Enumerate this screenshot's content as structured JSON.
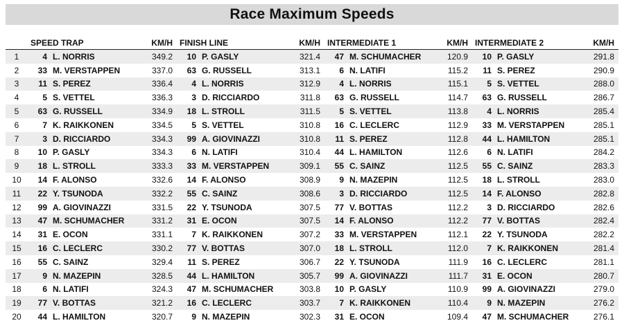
{
  "title": "Race Maximum Speeds",
  "ranks": [
    "1",
    "2",
    "3",
    "4",
    "5",
    "6",
    "7",
    "8",
    "9",
    "10",
    "11",
    "12",
    "13",
    "14",
    "15",
    "16",
    "17",
    "18",
    "19",
    "20"
  ],
  "sections": [
    {
      "id": "speed-trap",
      "label": "SPEED TRAP",
      "unit": "KM/H",
      "rows": [
        {
          "num": "4",
          "name": "L. NORRIS",
          "kmh": "349.2"
        },
        {
          "num": "33",
          "name": "M. VERSTAPPEN",
          "kmh": "337.0"
        },
        {
          "num": "11",
          "name": "S. PEREZ",
          "kmh": "336.4"
        },
        {
          "num": "5",
          "name": "S. VETTEL",
          "kmh": "336.3"
        },
        {
          "num": "63",
          "name": "G. RUSSELL",
          "kmh": "334.9"
        },
        {
          "num": "7",
          "name": "K. RAIKKONEN",
          "kmh": "334.5"
        },
        {
          "num": "3",
          "name": "D. RICCIARDO",
          "kmh": "334.3"
        },
        {
          "num": "10",
          "name": "P. GASLY",
          "kmh": "334.3"
        },
        {
          "num": "18",
          "name": "L. STROLL",
          "kmh": "333.3"
        },
        {
          "num": "14",
          "name": "F. ALONSO",
          "kmh": "332.6"
        },
        {
          "num": "22",
          "name": "Y. TSUNODA",
          "kmh": "332.2"
        },
        {
          "num": "99",
          "name": "A. GIOVINAZZI",
          "kmh": "331.5"
        },
        {
          "num": "47",
          "name": "M. SCHUMACHER",
          "kmh": "331.2"
        },
        {
          "num": "31",
          "name": "E. OCON",
          "kmh": "331.1"
        },
        {
          "num": "16",
          "name": "C. LECLERC",
          "kmh": "330.2"
        },
        {
          "num": "55",
          "name": "C. SAINZ",
          "kmh": "329.4"
        },
        {
          "num": "9",
          "name": "N. MAZEPIN",
          "kmh": "328.5"
        },
        {
          "num": "6",
          "name": "N. LATIFI",
          "kmh": "324.3"
        },
        {
          "num": "77",
          "name": "V. BOTTAS",
          "kmh": "321.2"
        },
        {
          "num": "44",
          "name": "L. HAMILTON",
          "kmh": "320.7"
        }
      ]
    },
    {
      "id": "finish-line",
      "label": "FINISH LINE",
      "unit": "KM/H",
      "rows": [
        {
          "num": "10",
          "name": "P. GASLY",
          "kmh": "321.4"
        },
        {
          "num": "63",
          "name": "G. RUSSELL",
          "kmh": "313.1"
        },
        {
          "num": "4",
          "name": "L. NORRIS",
          "kmh": "312.9"
        },
        {
          "num": "3",
          "name": "D. RICCIARDO",
          "kmh": "311.8"
        },
        {
          "num": "18",
          "name": "L. STROLL",
          "kmh": "311.5"
        },
        {
          "num": "5",
          "name": "S. VETTEL",
          "kmh": "310.8"
        },
        {
          "num": "99",
          "name": "A. GIOVINAZZI",
          "kmh": "310.8"
        },
        {
          "num": "6",
          "name": "N. LATIFI",
          "kmh": "310.4"
        },
        {
          "num": "33",
          "name": "M. VERSTAPPEN",
          "kmh": "309.1"
        },
        {
          "num": "14",
          "name": "F. ALONSO",
          "kmh": "308.9"
        },
        {
          "num": "55",
          "name": "C. SAINZ",
          "kmh": "308.6"
        },
        {
          "num": "22",
          "name": "Y. TSUNODA",
          "kmh": "307.5"
        },
        {
          "num": "31",
          "name": "E. OCON",
          "kmh": "307.5"
        },
        {
          "num": "7",
          "name": "K. RAIKKONEN",
          "kmh": "307.2"
        },
        {
          "num": "77",
          "name": "V. BOTTAS",
          "kmh": "307.0"
        },
        {
          "num": "11",
          "name": "S. PEREZ",
          "kmh": "306.7"
        },
        {
          "num": "44",
          "name": "L. HAMILTON",
          "kmh": "305.7"
        },
        {
          "num": "47",
          "name": "M. SCHUMACHER",
          "kmh": "303.8"
        },
        {
          "num": "16",
          "name": "C. LECLERC",
          "kmh": "303.7"
        },
        {
          "num": "9",
          "name": "N. MAZEPIN",
          "kmh": "302.3"
        }
      ]
    },
    {
      "id": "intermediate-1",
      "label": "INTERMEDIATE 1",
      "unit": "KM/H",
      "rows": [
        {
          "num": "47",
          "name": "M. SCHUMACHER",
          "kmh": "120.9"
        },
        {
          "num": "6",
          "name": "N. LATIFI",
          "kmh": "115.2"
        },
        {
          "num": "4",
          "name": "L. NORRIS",
          "kmh": "115.1"
        },
        {
          "num": "63",
          "name": "G. RUSSELL",
          "kmh": "114.7"
        },
        {
          "num": "5",
          "name": "S. VETTEL",
          "kmh": "113.8"
        },
        {
          "num": "16",
          "name": "C. LECLERC",
          "kmh": "112.9"
        },
        {
          "num": "11",
          "name": "S. PEREZ",
          "kmh": "112.8"
        },
        {
          "num": "44",
          "name": "L. HAMILTON",
          "kmh": "112.6"
        },
        {
          "num": "55",
          "name": "C. SAINZ",
          "kmh": "112.5"
        },
        {
          "num": "9",
          "name": "N. MAZEPIN",
          "kmh": "112.5"
        },
        {
          "num": "3",
          "name": "D. RICCIARDO",
          "kmh": "112.5"
        },
        {
          "num": "77",
          "name": "V. BOTTAS",
          "kmh": "112.2"
        },
        {
          "num": "14",
          "name": "F. ALONSO",
          "kmh": "112.2"
        },
        {
          "num": "33",
          "name": "M. VERSTAPPEN",
          "kmh": "112.1"
        },
        {
          "num": "18",
          "name": "L. STROLL",
          "kmh": "112.0"
        },
        {
          "num": "22",
          "name": "Y. TSUNODA",
          "kmh": "111.9"
        },
        {
          "num": "99",
          "name": "A. GIOVINAZZI",
          "kmh": "111.7"
        },
        {
          "num": "10",
          "name": "P. GASLY",
          "kmh": "110.9"
        },
        {
          "num": "7",
          "name": "K. RAIKKONEN",
          "kmh": "110.4"
        },
        {
          "num": "31",
          "name": "E. OCON",
          "kmh": "109.4"
        }
      ]
    },
    {
      "id": "intermediate-2",
      "label": "INTERMEDIATE 2",
      "unit": "KM/H",
      "rows": [
        {
          "num": "10",
          "name": "P. GASLY",
          "kmh": "291.8"
        },
        {
          "num": "11",
          "name": "S. PEREZ",
          "kmh": "290.9"
        },
        {
          "num": "5",
          "name": "S. VETTEL",
          "kmh": "288.0"
        },
        {
          "num": "63",
          "name": "G. RUSSELL",
          "kmh": "286.7"
        },
        {
          "num": "4",
          "name": "L. NORRIS",
          "kmh": "285.4"
        },
        {
          "num": "33",
          "name": "M. VERSTAPPEN",
          "kmh": "285.1"
        },
        {
          "num": "44",
          "name": "L. HAMILTON",
          "kmh": "285.1"
        },
        {
          "num": "6",
          "name": "N. LATIFI",
          "kmh": "284.2"
        },
        {
          "num": "55",
          "name": "C. SAINZ",
          "kmh": "283.3"
        },
        {
          "num": "18",
          "name": "L. STROLL",
          "kmh": "283.0"
        },
        {
          "num": "14",
          "name": "F. ALONSO",
          "kmh": "282.8"
        },
        {
          "num": "3",
          "name": "D. RICCIARDO",
          "kmh": "282.6"
        },
        {
          "num": "77",
          "name": "V. BOTTAS",
          "kmh": "282.4"
        },
        {
          "num": "22",
          "name": "Y. TSUNODA",
          "kmh": "282.2"
        },
        {
          "num": "7",
          "name": "K. RAIKKONEN",
          "kmh": "281.4"
        },
        {
          "num": "16",
          "name": "C. LECLERC",
          "kmh": "281.1"
        },
        {
          "num": "31",
          "name": "E. OCON",
          "kmh": "280.7"
        },
        {
          "num": "99",
          "name": "A. GIOVINAZZI",
          "kmh": "279.0"
        },
        {
          "num": "9",
          "name": "N. MAZEPIN",
          "kmh": "276.2"
        },
        {
          "num": "47",
          "name": "M. SCHUMACHER",
          "kmh": "276.1"
        }
      ]
    }
  ]
}
